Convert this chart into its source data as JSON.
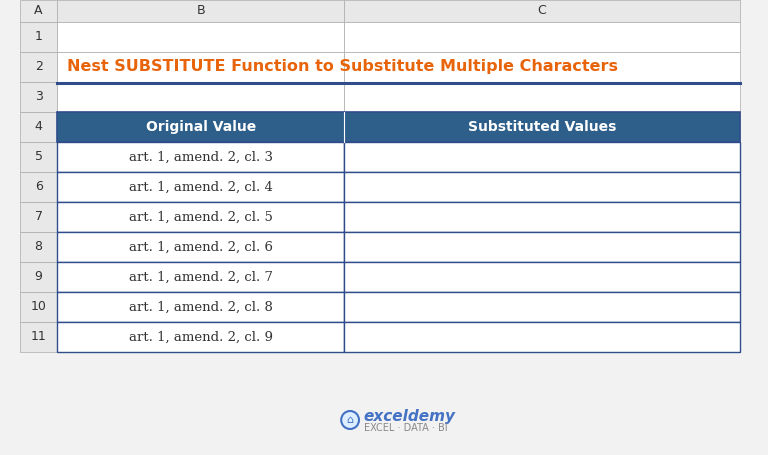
{
  "title": "Nest SUBSTITUTE Function to Substitute Multiple Characters",
  "title_color": "#E8640A",
  "title_underline_color": "#2E4D8A",
  "header_bg_color": "#2E5F8A",
  "header_text_color": "#FFFFFF",
  "header_cols": [
    "Original Value",
    "Substituted Values"
  ],
  "rows": [
    [
      "art. 1, amend. 2, cl. 3",
      ""
    ],
    [
      "art. 1, amend. 2, cl. 4",
      ""
    ],
    [
      "art. 1, amend. 2, cl. 5",
      ""
    ],
    [
      "art. 1, amend. 2, cl. 6",
      ""
    ],
    [
      "art. 1, amend. 2, cl. 7",
      ""
    ],
    [
      "art. 1, amend. 2, cl. 8",
      ""
    ],
    [
      "art. 1, amend. 2, cl. 9",
      ""
    ]
  ],
  "col_labels": [
    "A",
    "B",
    "C"
  ],
  "cell_border_color": "#2E4D8A",
  "spreadsheet_bg": "#F2F2F2",
  "exceldemy_color": "#4472C4",
  "exceldemy_sub_color": "#888888"
}
